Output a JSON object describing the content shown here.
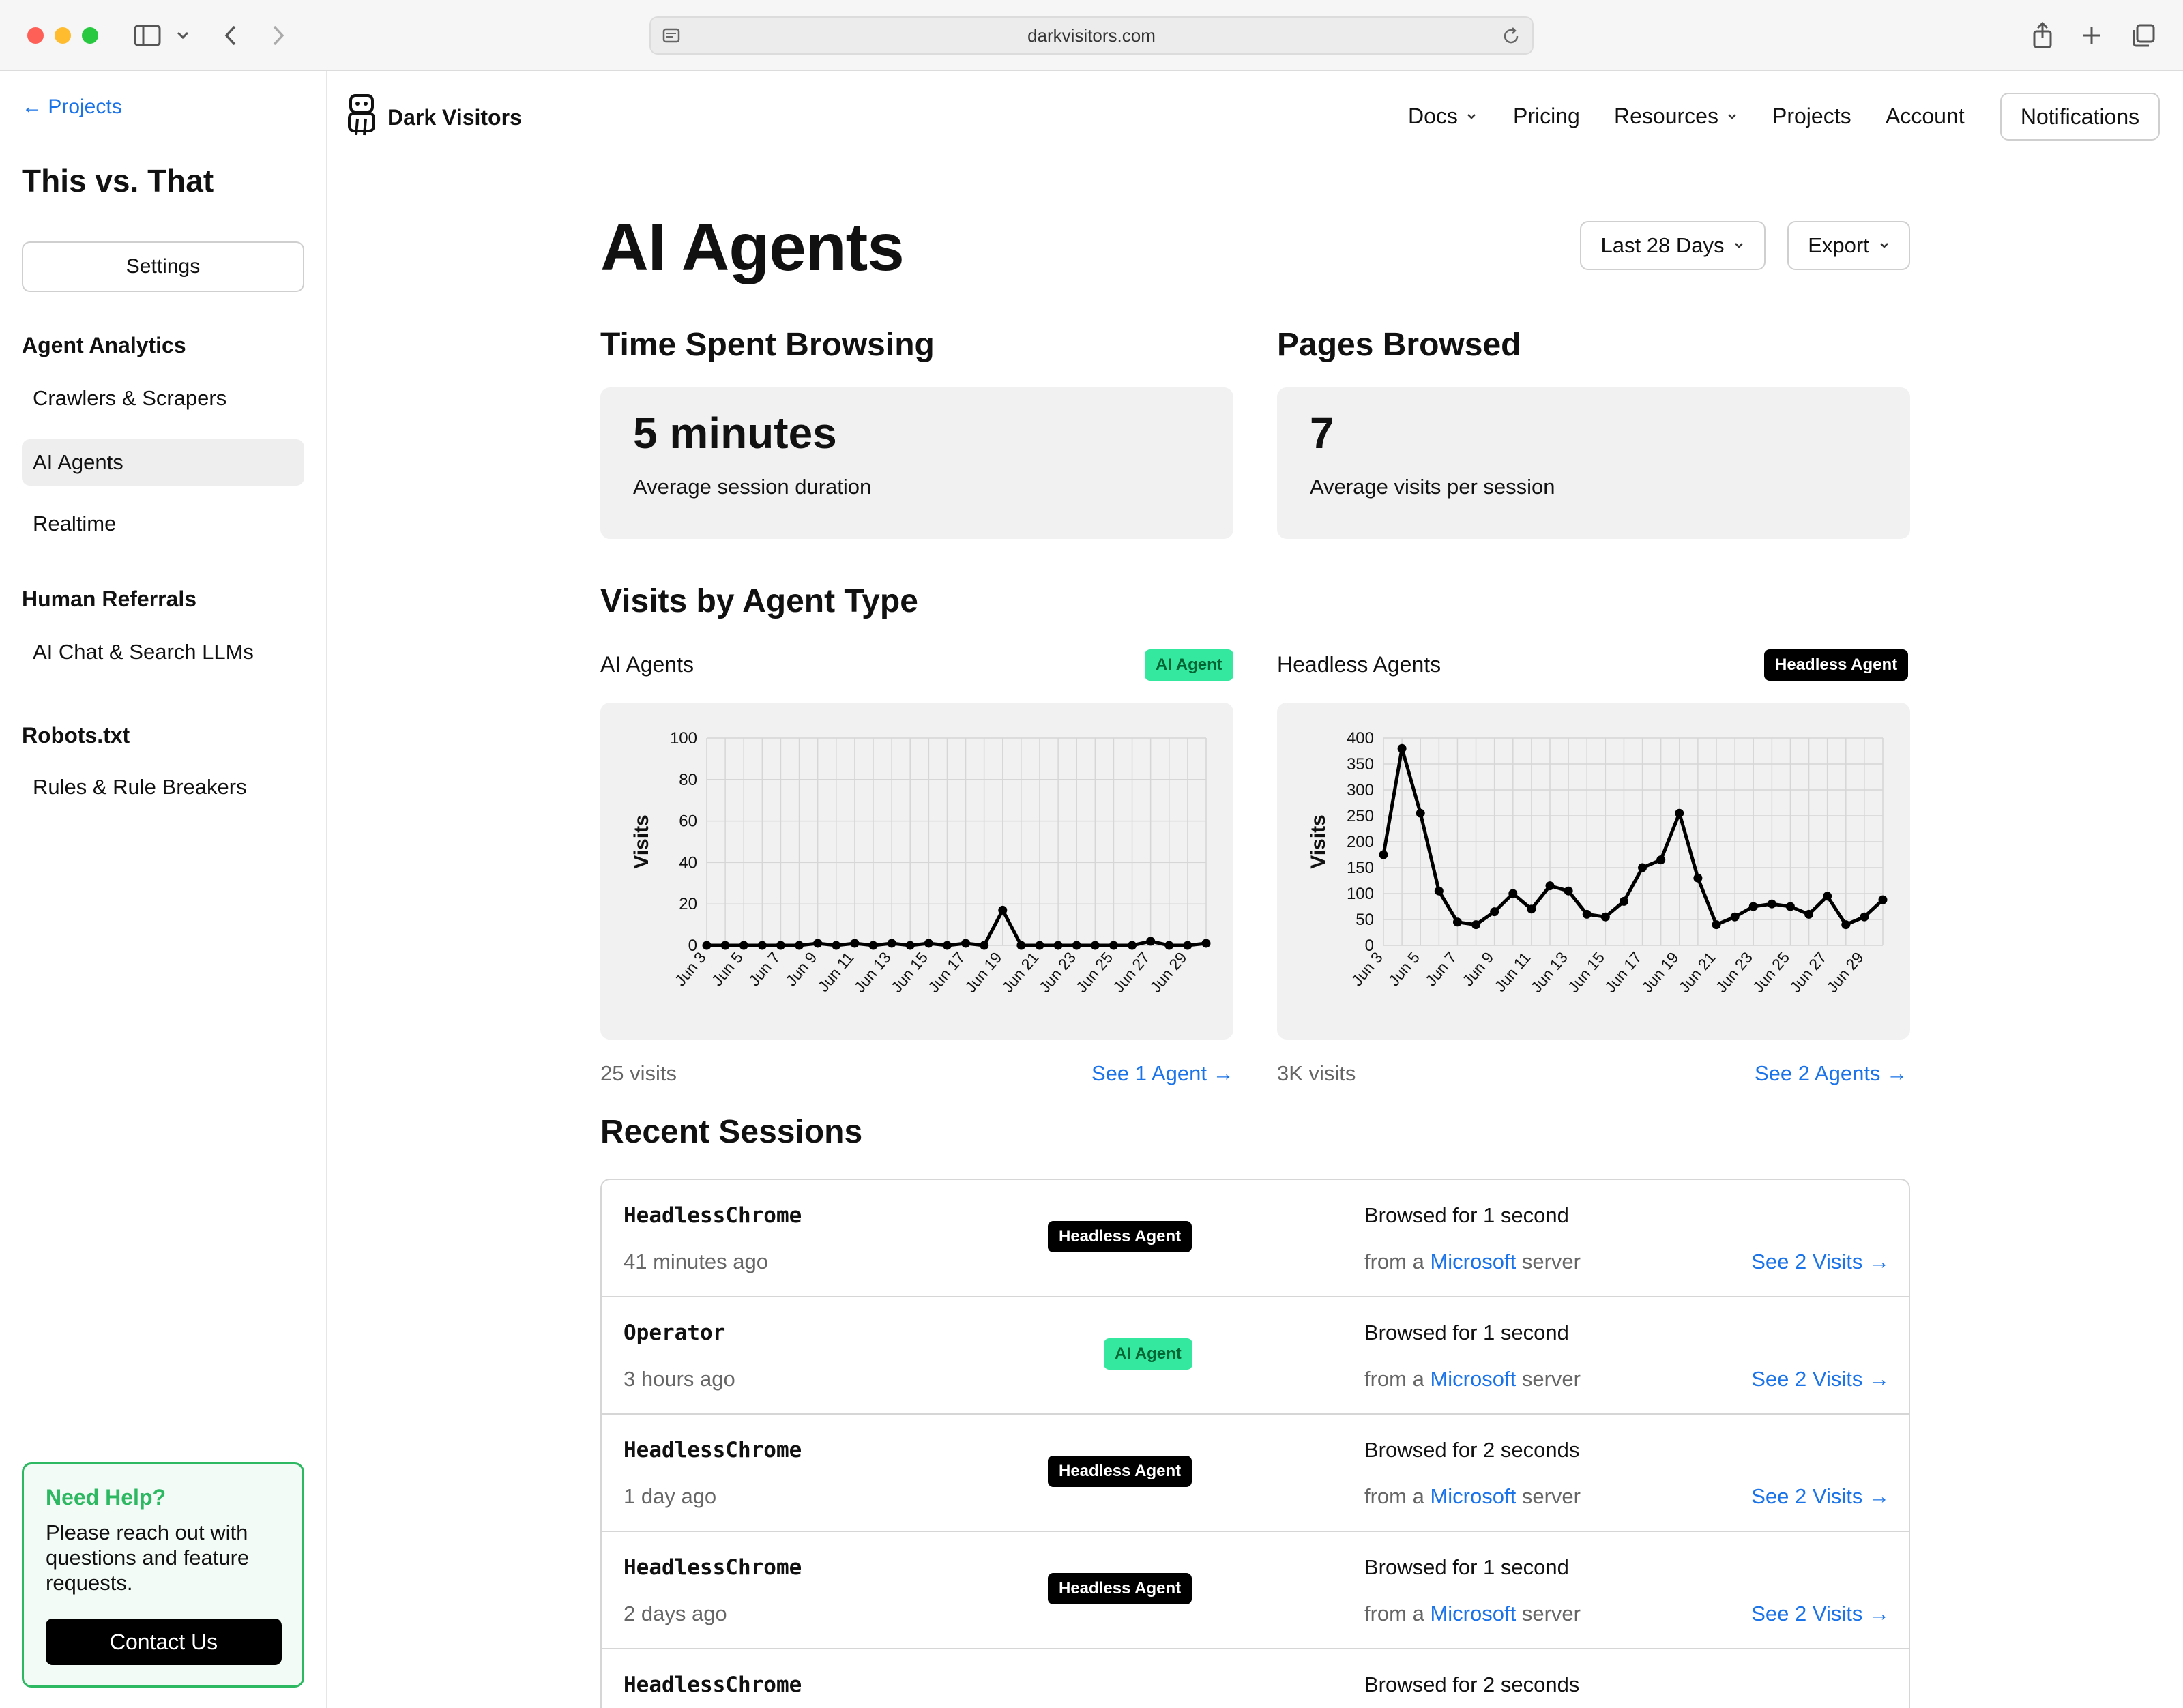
{
  "browser": {
    "url": "darkvisitors.com"
  },
  "sidebar": {
    "back_link": "← Projects",
    "project_title": "This vs. That",
    "settings_label": "Settings",
    "sections": [
      {
        "heading": "Agent Analytics",
        "items": [
          "Crawlers & Scrapers",
          "AI Agents",
          "Realtime"
        ]
      },
      {
        "heading": "Human Referrals",
        "items": [
          "AI Chat & Search LLMs"
        ]
      },
      {
        "heading": "Robots.txt",
        "items": [
          "Rules & Rule Breakers"
        ]
      }
    ],
    "active_item": "AI Agents",
    "help": {
      "title": "Need Help?",
      "text": "Please reach out with questions and feature requests.",
      "button": "Contact Us"
    }
  },
  "topnav": {
    "brand": "Dark Visitors",
    "items": [
      "Docs",
      "Pricing",
      "Resources",
      "Projects",
      "Account"
    ],
    "notifications": "Notifications"
  },
  "main": {
    "title": "AI Agents",
    "range_button": "Last 28 Days",
    "export_button": "Export",
    "time_heading": "Time Spent Browsing",
    "time_value": "5 minutes",
    "time_label": "Average session duration",
    "pages_heading": "Pages Browsed",
    "pages_value": "7",
    "pages_label": "Average visits per session",
    "visits_heading": "Visits by Agent Type",
    "ai_chart": {
      "label": "AI Agents",
      "badge": "AI Agent",
      "total": "25 visits",
      "link": "See 1 Agent →"
    },
    "hl_chart": {
      "label": "Headless Agents",
      "badge": "Headless Agent",
      "total": "3K visits",
      "link": "See 2 Agents →"
    },
    "sessions_heading": "Recent Sessions",
    "sessions": [
      {
        "name": "HeadlessChrome",
        "time": "41 minutes ago",
        "badge": "Headless Agent",
        "type": "hl",
        "duration": "Browsed for 1 second",
        "from_a": "from a ",
        "provider": "Microsoft",
        "server": " server",
        "link": "See 2 Visits →"
      },
      {
        "name": "Operator",
        "time": "3 hours ago",
        "badge": "AI Agent",
        "type": "ai",
        "duration": "Browsed for 1 second",
        "from_a": "from a ",
        "provider": "Microsoft",
        "server": " server",
        "link": "See 2 Visits →"
      },
      {
        "name": "HeadlessChrome",
        "time": "1 day ago",
        "badge": "Headless Agent",
        "type": "hl",
        "duration": "Browsed for 2 seconds",
        "from_a": "from a ",
        "provider": "Microsoft",
        "server": " server",
        "link": "See 2 Visits →"
      },
      {
        "name": "HeadlessChrome",
        "time": "2 days ago",
        "badge": "Headless Agent",
        "type": "hl",
        "duration": "Browsed for 1 second",
        "from_a": "from a ",
        "provider": "Microsoft",
        "server": " server",
        "link": "See 2 Visits →"
      },
      {
        "name": "HeadlessChrome",
        "time": "",
        "badge": "Headless Agent",
        "type": "hl",
        "duration": "Browsed for 2 seconds",
        "from_a": "",
        "provider": "",
        "server": "",
        "link": ""
      }
    ]
  },
  "chart_data": [
    {
      "type": "line",
      "ylabel": "Visits",
      "ylim": [
        0,
        100
      ],
      "yticks": [
        0,
        20,
        40,
        60,
        80,
        100
      ],
      "x": [
        "Jun 3",
        "Jun 4",
        "Jun 5",
        "Jun 6",
        "Jun 7",
        "Jun 8",
        "Jun 9",
        "Jun 10",
        "Jun 11",
        "Jun 12",
        "Jun 13",
        "Jun 14",
        "Jun 15",
        "Jun 16",
        "Jun 17",
        "Jun 18",
        "Jun 19",
        "Jun 20",
        "Jun 21",
        "Jun 22",
        "Jun 23",
        "Jun 24",
        "Jun 25",
        "Jun 26",
        "Jun 27",
        "Jun 28",
        "Jun 29",
        "Jun 30"
      ],
      "xtick_labels": [
        "Jun 3",
        "Jun 5",
        "Jun 7",
        "Jun 9",
        "Jun 11",
        "Jun 13",
        "Jun 15",
        "Jun 17",
        "Jun 19",
        "Jun 21",
        "Jun 23",
        "Jun 25",
        "Jun 27",
        "Jun 29"
      ],
      "values": [
        0,
        0,
        0,
        0,
        0,
        0,
        1,
        0,
        1,
        0,
        1,
        0,
        1,
        0,
        1,
        0,
        17,
        0,
        0,
        0,
        0,
        0,
        0,
        0,
        2,
        0,
        0,
        1
      ],
      "grid": true
    },
    {
      "type": "line",
      "ylabel": "Visits",
      "ylim": [
        0,
        400
      ],
      "yticks": [
        0,
        50,
        100,
        150,
        200,
        250,
        300,
        350,
        400
      ],
      "x": [
        "Jun 3",
        "Jun 4",
        "Jun 5",
        "Jun 6",
        "Jun 7",
        "Jun 8",
        "Jun 9",
        "Jun 10",
        "Jun 11",
        "Jun 12",
        "Jun 13",
        "Jun 14",
        "Jun 15",
        "Jun 16",
        "Jun 17",
        "Jun 18",
        "Jun 19",
        "Jun 20",
        "Jun 21",
        "Jun 22",
        "Jun 23",
        "Jun 24",
        "Jun 25",
        "Jun 26",
        "Jun 27",
        "Jun 28",
        "Jun 29",
        "Jun 30"
      ],
      "xtick_labels": [
        "Jun 3",
        "Jun 5",
        "Jun 7",
        "Jun 9",
        "Jun 11",
        "Jun 13",
        "Jun 15",
        "Jun 17",
        "Jun 19",
        "Jun 21",
        "Jun 23",
        "Jun 25",
        "Jun 27",
        "Jun 29"
      ],
      "values": [
        175,
        380,
        255,
        105,
        45,
        40,
        65,
        100,
        70,
        115,
        105,
        60,
        55,
        85,
        150,
        165,
        255,
        130,
        40,
        55,
        75,
        80,
        75,
        60,
        95,
        40,
        55,
        88
      ],
      "grid": true
    }
  ],
  "colors": {
    "accent": "#1a73e8",
    "ai_badge": "#35e8a0",
    "help_green": "#2db862"
  }
}
